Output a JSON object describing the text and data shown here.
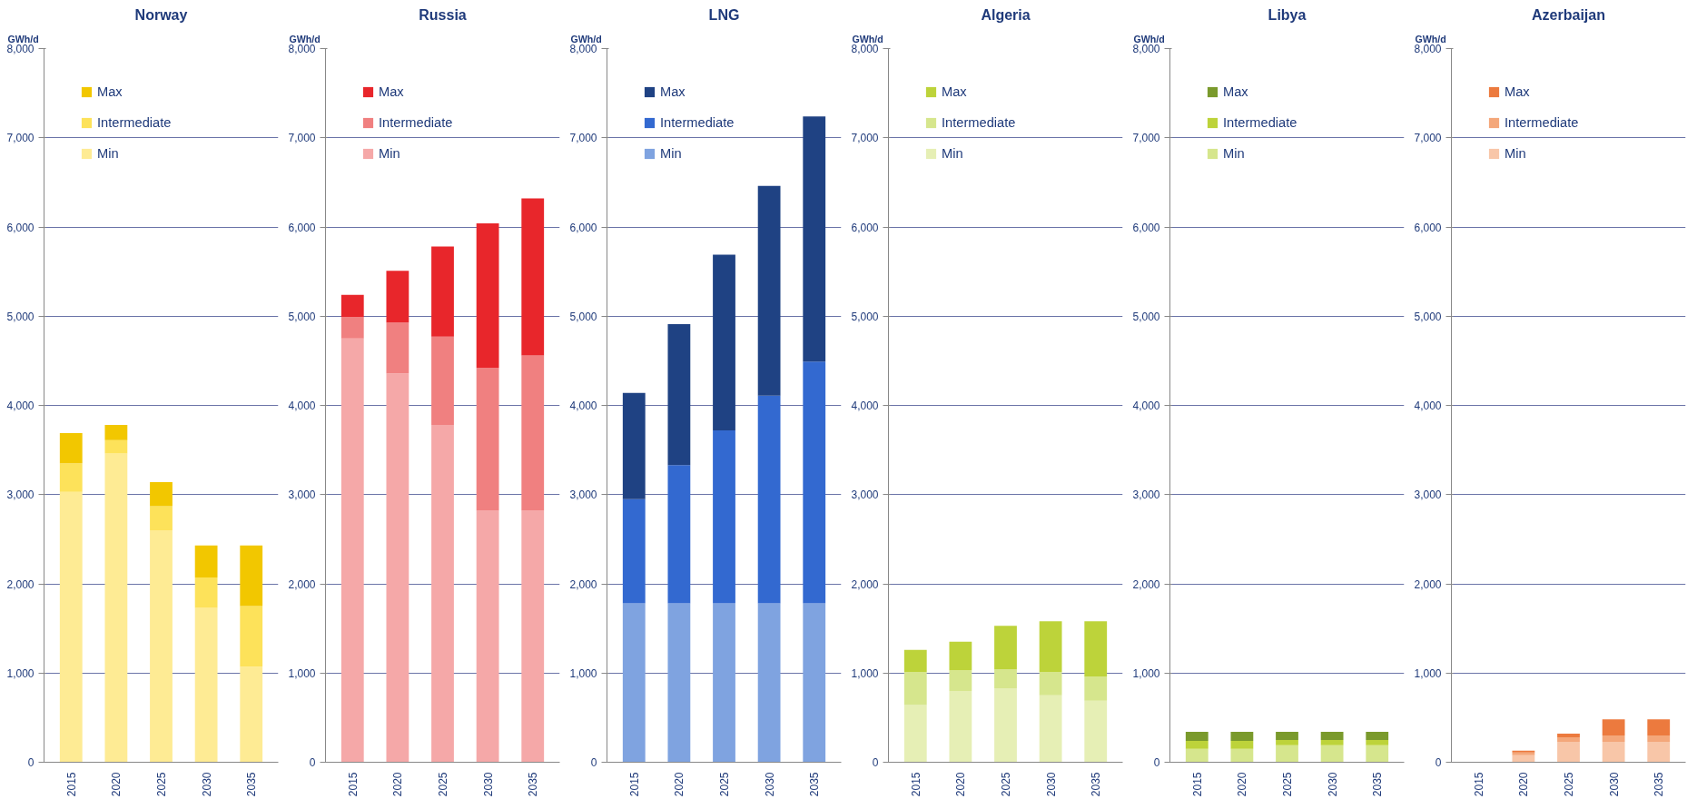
{
  "chart_data": [
    {
      "type": "bar",
      "title": "Norway",
      "ylabel": "GWh/d",
      "stacked": true,
      "categories": [
        "2015",
        "2020",
        "2025",
        "2030",
        "2035"
      ],
      "ylim": [
        0,
        8000
      ],
      "yticks": [
        {
          "value": 0,
          "label": "0"
        },
        {
          "value": 1000,
          "label": "1,000"
        },
        {
          "value": 2000,
          "label": "2,000"
        },
        {
          "value": 3000,
          "label": "3,000"
        },
        {
          "value": 4000,
          "label": "4,000"
        },
        {
          "value": 5000,
          "label": "5,000"
        },
        {
          "value": 6000,
          "label": "6,000"
        },
        {
          "value": 7000,
          "label": "7,000"
        },
        {
          "value": 8000,
          "label": "8,000"
        }
      ],
      "grid": "y",
      "legend": "top left",
      "series": [
        {
          "name": "Min",
          "color": "#feeb94",
          "values": [
            3030,
            3460,
            2600,
            1730,
            1070
          ]
        },
        {
          "name": "Intermediate",
          "color": "#fde25a",
          "values": [
            320,
            150,
            270,
            340,
            680
          ]
        },
        {
          "name": "Max",
          "color": "#f2c700",
          "values": [
            340,
            170,
            270,
            360,
            680
          ]
        }
      ]
    },
    {
      "type": "bar",
      "title": "Russia",
      "ylabel": "GWh/d",
      "stacked": true,
      "categories": [
        "2015",
        "2020",
        "2025",
        "2030",
        "2035"
      ],
      "ylim": [
        0,
        8000
      ],
      "yticks": [
        {
          "value": 0,
          "label": "0"
        },
        {
          "value": 1000,
          "label": "1,000"
        },
        {
          "value": 2000,
          "label": "2,000"
        },
        {
          "value": 3000,
          "label": "3,000"
        },
        {
          "value": 4000,
          "label": "4,000"
        },
        {
          "value": 5000,
          "label": "5,000"
        },
        {
          "value": 6000,
          "label": "6,000"
        },
        {
          "value": 7000,
          "label": "7,000"
        },
        {
          "value": 8000,
          "label": "8,000"
        }
      ],
      "grid": "y",
      "legend": "top left",
      "series": [
        {
          "name": "Min",
          "color": "#f5a8a8",
          "values": [
            4750,
            4360,
            3780,
            2820,
            2820
          ]
        },
        {
          "name": "Intermediate",
          "color": "#f08080",
          "values": [
            240,
            570,
            990,
            1600,
            1740
          ]
        },
        {
          "name": "Max",
          "color": "#e8262b",
          "values": [
            250,
            580,
            1010,
            1620,
            1760
          ]
        }
      ]
    },
    {
      "type": "bar",
      "title": "LNG",
      "ylabel": "GWh/d",
      "stacked": true,
      "categories": [
        "2015",
        "2020",
        "2025",
        "2030",
        "2035"
      ],
      "ylim": [
        0,
        8000
      ],
      "yticks": [
        {
          "value": 0,
          "label": "0"
        },
        {
          "value": 1000,
          "label": "1,000"
        },
        {
          "value": 2000,
          "label": "2,000"
        },
        {
          "value": 3000,
          "label": "3,000"
        },
        {
          "value": 4000,
          "label": "4,000"
        },
        {
          "value": 5000,
          "label": "5,000"
        },
        {
          "value": 6000,
          "label": "6,000"
        },
        {
          "value": 7000,
          "label": "7,000"
        },
        {
          "value": 8000,
          "label": "8,000"
        }
      ],
      "grid": "y",
      "legend": "top left",
      "series": [
        {
          "name": "Min",
          "color": "#7fa3e0",
          "values": [
            1780,
            1780,
            1780,
            1780,
            1780
          ]
        },
        {
          "name": "Intermediate",
          "color": "#3369d0",
          "values": [
            1170,
            1550,
            1940,
            2330,
            2710
          ]
        },
        {
          "name": "Max",
          "color": "#1f4283",
          "values": [
            1190,
            1580,
            1970,
            2350,
            2750
          ]
        }
      ]
    },
    {
      "type": "bar",
      "title": "Algeria",
      "ylabel": "GWh/d",
      "stacked": true,
      "categories": [
        "2015",
        "2020",
        "2025",
        "2030",
        "2035"
      ],
      "ylim": [
        0,
        8000
      ],
      "yticks": [
        {
          "value": 0,
          "label": "0"
        },
        {
          "value": 1000,
          "label": "1,000"
        },
        {
          "value": 2000,
          "label": "2,000"
        },
        {
          "value": 3000,
          "label": "3,000"
        },
        {
          "value": 4000,
          "label": "4,000"
        },
        {
          "value": 5000,
          "label": "5,000"
        },
        {
          "value": 6000,
          "label": "6,000"
        },
        {
          "value": 7000,
          "label": "7,000"
        },
        {
          "value": 8000,
          "label": "8,000"
        }
      ],
      "grid": "y",
      "legend": "top left",
      "series": [
        {
          "name": "Min",
          "color": "#e6efb5",
          "values": [
            640,
            800,
            830,
            750,
            690
          ]
        },
        {
          "name": "Intermediate",
          "color": "#d6e68d",
          "values": [
            370,
            230,
            210,
            260,
            270
          ]
        },
        {
          "name": "Max",
          "color": "#bdd33a",
          "values": [
            250,
            320,
            490,
            570,
            620
          ]
        }
      ]
    },
    {
      "type": "bar",
      "title": "Libya",
      "ylabel": "GWh/d",
      "stacked": true,
      "categories": [
        "2015",
        "2020",
        "2025",
        "2030",
        "2035"
      ],
      "ylim": [
        0,
        8000
      ],
      "yticks": [
        {
          "value": 0,
          "label": "0"
        },
        {
          "value": 1000,
          "label": "1,000"
        },
        {
          "value": 2000,
          "label": "2,000"
        },
        {
          "value": 3000,
          "label": "3,000"
        },
        {
          "value": 4000,
          "label": "4,000"
        },
        {
          "value": 5000,
          "label": "5,000"
        },
        {
          "value": 6000,
          "label": "6,000"
        },
        {
          "value": 7000,
          "label": "7,000"
        },
        {
          "value": 8000,
          "label": "8,000"
        }
      ],
      "grid": "y",
      "legend": "top left",
      "series": [
        {
          "name": "Min",
          "color": "#d6e68d",
          "values": [
            150,
            150,
            190,
            190,
            190
          ]
        },
        {
          "name": "Intermediate",
          "color": "#bdd33a",
          "values": [
            90,
            90,
            60,
            60,
            60
          ]
        },
        {
          "name": "Max",
          "color": "#7a9a2c",
          "values": [
            100,
            100,
            90,
            90,
            90
          ]
        }
      ]
    },
    {
      "type": "bar",
      "title": "Azerbaijan",
      "ylabel": "GWh/d",
      "stacked": true,
      "categories": [
        "2015",
        "2020",
        "2025",
        "2030",
        "2035"
      ],
      "ylim": [
        0,
        8000
      ],
      "yticks": [
        {
          "value": 0,
          "label": "0"
        },
        {
          "value": 1000,
          "label": "1,000"
        },
        {
          "value": 2000,
          "label": "2,000"
        },
        {
          "value": 3000,
          "label": "3,000"
        },
        {
          "value": 4000,
          "label": "4,000"
        },
        {
          "value": 5000,
          "label": "5,000"
        },
        {
          "value": 6000,
          "label": "6,000"
        },
        {
          "value": 7000,
          "label": "7,000"
        },
        {
          "value": 8000,
          "label": "8,000"
        }
      ],
      "grid": "y",
      "legend": "top left",
      "series": [
        {
          "name": "Min",
          "color": "#f8c6a8",
          "values": [
            0,
            80,
            230,
            230,
            230
          ]
        },
        {
          "name": "Intermediate",
          "color": "#f4a77a",
          "values": [
            0,
            30,
            50,
            70,
            70
          ]
        },
        {
          "name": "Max",
          "color": "#ec7a3e",
          "values": [
            0,
            20,
            40,
            180,
            180
          ]
        }
      ]
    }
  ]
}
